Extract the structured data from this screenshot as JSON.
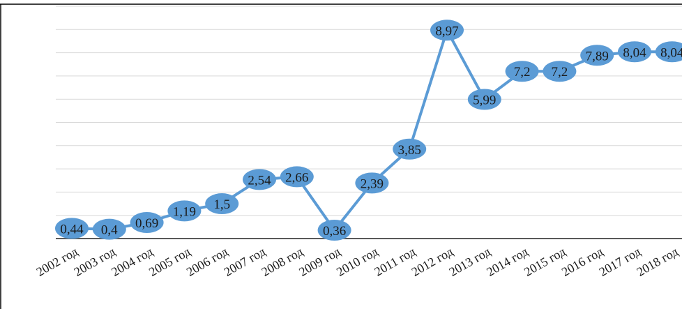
{
  "chart_data": {
    "type": "line",
    "categories": [
      "2002 год",
      "2003 год",
      "2004 год",
      "2005 год",
      "2006 год",
      "2007 год",
      "2008 год",
      "2009 год",
      "2010 год",
      "2011 год",
      "2012 год",
      "2013 год",
      "2014 год",
      "2015 год",
      "2016 год",
      "2017 год",
      "2018 год"
    ],
    "series": [
      {
        "values": [
          0.44,
          0.4,
          0.69,
          1.19,
          1.5,
          2.54,
          2.66,
          0.36,
          2.39,
          3.85,
          8.97,
          5.99,
          7.2,
          7.2,
          7.89,
          8.04,
          8.04
        ],
        "labels": [
          "0,44",
          "0,4",
          "0,69",
          "1,19",
          "1,5",
          "2,54",
          "2,66",
          "0,36",
          "2,39",
          "3,85",
          "8,97",
          "5,99",
          "7,2",
          "7,2",
          "7,89",
          "8,04",
          "8,04"
        ],
        "color": "#5b9bd5"
      }
    ],
    "title": "",
    "xlabel": "",
    "ylabel": "",
    "ylim": [
      0,
      10
    ],
    "grid": true,
    "legend": "none"
  }
}
